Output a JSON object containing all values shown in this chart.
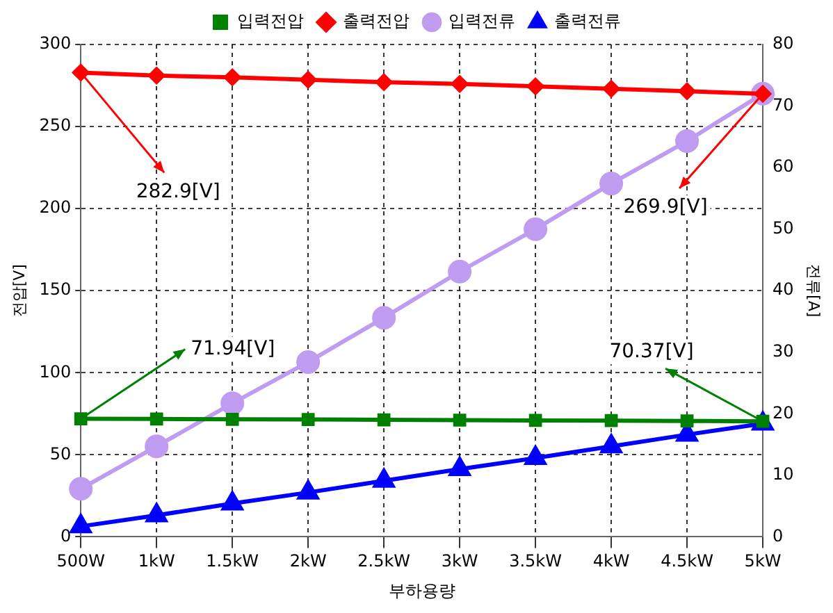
{
  "chart_data": {
    "type": "line",
    "xlabel": "부하용량",
    "ylabel": "전압[V]",
    "y2label": "전류[A]",
    "categories": [
      "500W",
      "1kW",
      "1.5kW",
      "2kW",
      "2.5kW",
      "3kW",
      "3.5kW",
      "4kW",
      "4.5kW",
      "5kW"
    ],
    "series": [
      {
        "name": "입력전압",
        "color": "#008000",
        "marker": "square",
        "values": [
          71.94,
          71.8,
          71.6,
          71.5,
          71.3,
          71.1,
          70.9,
          70.8,
          70.6,
          70.37
        ]
      },
      {
        "name": "출력전압",
        "color": "#ff0000",
        "marker": "diamond",
        "values": [
          282.9,
          281,
          280,
          278.5,
          277,
          276,
          274.5,
          273,
          271.5,
          269.9
        ]
      },
      {
        "name": "입력전류",
        "color": "#c09cf0",
        "marker": "circle",
        "axis": "y2",
        "values": [
          7.8,
          14.7,
          21.7,
          28.4,
          35.6,
          43.1,
          50.0,
          57.4,
          64.3,
          72.0
        ]
      },
      {
        "name": "출력전류",
        "color": "#0000ff",
        "marker": "triangle",
        "axis": "y2",
        "values": [
          1.7,
          3.5,
          5.4,
          7.2,
          9.1,
          11.0,
          12.8,
          14.7,
          16.6,
          18.4
        ]
      }
    ],
    "ylim": [
      0,
      300
    ],
    "yticks": [
      0,
      50,
      100,
      150,
      200,
      250,
      300
    ],
    "y2lim": [
      0,
      80
    ],
    "y2ticks": [
      0,
      10,
      20,
      30,
      40,
      50,
      60,
      70,
      80
    ],
    "grid": true,
    "legend": "top",
    "line_style": "solid",
    "annotations": [
      {
        "text": "282.9[V]",
        "x": "500W",
        "y": 282.9
      },
      {
        "text": "269.9[V]",
        "x": "5kW",
        "y": 269.9
      },
      {
        "text": "71.94[V]",
        "x": "500W",
        "y": 71.94
      },
      {
        "text": "70.37[V]",
        "x": "5kW",
        "y": 70.37
      }
    ]
  }
}
